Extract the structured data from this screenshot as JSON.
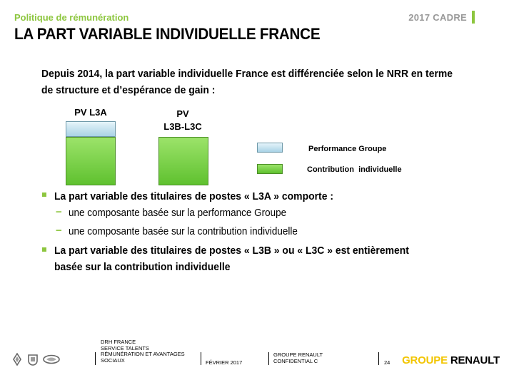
{
  "header": {
    "kicker": "Politique de rémunération",
    "title": "LA PART VARIABLE INDIVIDUELLE FRANCE",
    "year_label": "2017 CADRE"
  },
  "intro": "Depuis 2014, la part variable individuelle France est différenciée selon le NRR en terme de structure et d’espérance de gain :",
  "diagram": {
    "col1_label": "PV L3A",
    "col2_label_line1": "PV",
    "col2_label_line2": "L3B-L3C",
    "legend": [
      {
        "label": "Performance Groupe",
        "color": "#a9d3e6"
      },
      {
        "label": "Contribution  individuelle",
        "color": "#6ccb3a"
      }
    ]
  },
  "bullets": {
    "b1": "La part variable des titulaires de postes « L3A » comporte :",
    "sub1": "une composante basée sur la performance Groupe",
    "sub2": "une composante basée sur la contribution individuelle",
    "b2_line1": "La part variable des titulaires de postes « L3B » ou « L3C » est entièrement",
    "b2_line2": "basée sur la contribution individuelle"
  },
  "footer": {
    "dept_lines": [
      "DRH FRANCE",
      "SERVICE TALENTS",
      "RÉMUNÉRATION ET AVANTAGES",
      "SOCIAUX"
    ],
    "date": "FÉVRIER 2017",
    "company_lines": [
      "GROUPE RENAULT",
      "CONFIDENTIAL C"
    ],
    "page_number": "24",
    "brand_word1": "GROUPE",
    "brand_word2": "RENAULT",
    "logo_icons": [
      "renault-logo-icon",
      "dacia-logo-icon",
      "samsung-logo-icon"
    ]
  }
}
